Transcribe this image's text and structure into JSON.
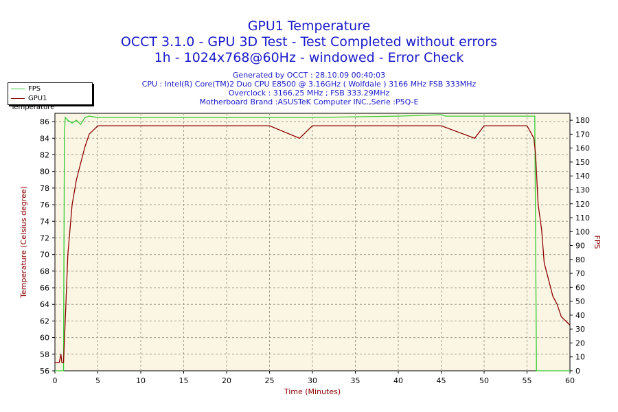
{
  "header": {
    "title_line1": "GPU1 Temperature",
    "title_line2": "OCCT 3.1.0 - GPU 3D Test - Test Completed without errors",
    "title_line3": "1h - 1024x768@60Hz - windowed - Error Check",
    "info_line1": "Generated by OCCT : 28.10.09 00:40:03",
    "info_line2": "CPU : Intel(R) Core(TM)2 Duo CPU E8500 @ 3.16GHz ( Wolfdale ) 3166 MHz FSB 333MHz",
    "info_line3": "Overclock : 3166.25 MHz ; FSB 333.29MHz",
    "info_line4": "Motherboard Brand :ASUSTeK Computer INC.,Serie :P5Q-E"
  },
  "legend": {
    "fps_label": "FPS",
    "temp_label": "GPU1 Temperature"
  },
  "colors": {
    "fps": "#33cc33",
    "temp": "#8b0000",
    "plot_bg": "#fbf5e3",
    "grid": "#a09b8c",
    "title": "#1a1acc"
  },
  "chart_data": {
    "type": "line",
    "xlabel": "Time (Minutes)",
    "ylabel_left": "Temperature (Celsius degree)",
    "ylabel_right": "FPS",
    "xlim": [
      0,
      60
    ],
    "ylim_left": [
      56,
      87
    ],
    "ylim_right": [
      0,
      185
    ],
    "x_ticks": [
      0,
      5,
      10,
      15,
      20,
      25,
      30,
      35,
      40,
      45,
      50,
      55,
      60
    ],
    "y_left_ticks": [
      56,
      58,
      60,
      62,
      64,
      66,
      68,
      70,
      72,
      74,
      76,
      78,
      80,
      82,
      84,
      86
    ],
    "y_right_ticks": [
      0,
      10,
      20,
      30,
      40,
      50,
      60,
      70,
      80,
      90,
      100,
      110,
      120,
      130,
      140,
      150,
      160,
      170,
      180
    ],
    "grid": true,
    "legend_position": "top-left",
    "series": [
      {
        "name": "FPS",
        "axis": "right",
        "x": [
          0,
          1.0,
          1.1,
          1.2,
          1.5,
          2,
          2.5,
          3,
          3.5,
          4,
          5,
          10,
          20,
          30,
          40,
          45,
          45.5,
          50,
          55,
          55.9,
          56.1,
          56.2,
          60
        ],
        "y": [
          0,
          0,
          170,
          182,
          180,
          178,
          180,
          177,
          182,
          183,
          182,
          182,
          182,
          182,
          183,
          184,
          183,
          183,
          183,
          183,
          0,
          0,
          0
        ]
      },
      {
        "name": "GPU1 Temperature",
        "axis": "left",
        "x": [
          0,
          0.5,
          0.7,
          0.8,
          1.0,
          1.2,
          1.5,
          2.0,
          2.5,
          3.0,
          3.5,
          4.0,
          4.5,
          5,
          10,
          15,
          20,
          25,
          28.5,
          30,
          35,
          40,
          45,
          48.9,
          50,
          55,
          55.8,
          56,
          56.3,
          56.7,
          57,
          57.5,
          58,
          58.5,
          59,
          59.5,
          60
        ],
        "y": [
          57,
          57,
          58,
          57,
          57,
          62,
          70,
          76,
          79,
          81,
          83,
          84.5,
          85,
          85.5,
          85.5,
          85.5,
          85.5,
          85.5,
          84,
          85.5,
          85.5,
          85.5,
          85.5,
          84,
          85.5,
          85.5,
          84,
          82,
          76,
          73,
          69,
          67,
          65,
          64,
          62.5,
          62,
          61.5
        ]
      }
    ]
  }
}
